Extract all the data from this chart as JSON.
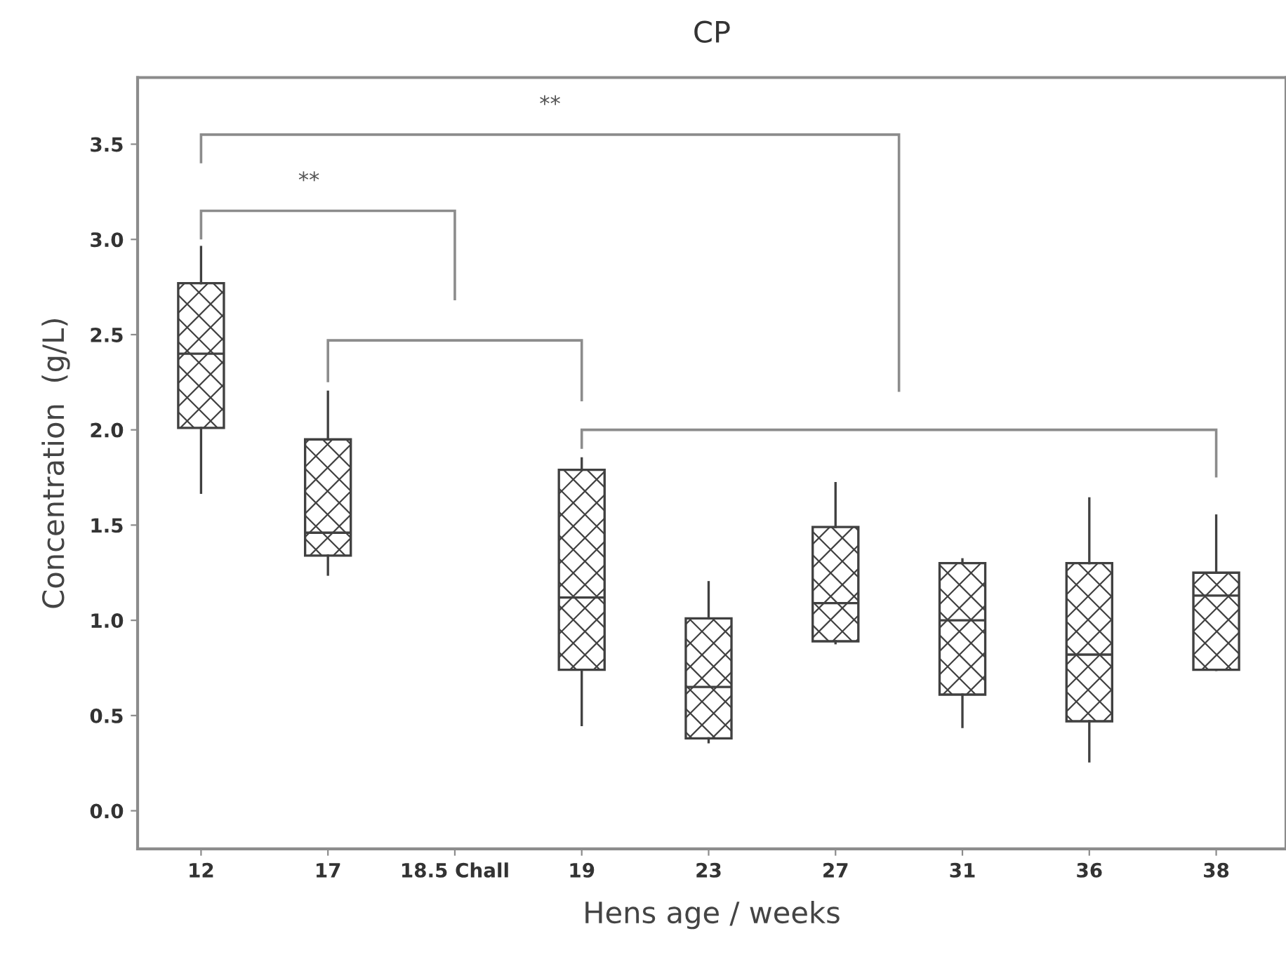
{
  "chart_data": {
    "type": "box",
    "title": "CP",
    "xlabel": "Hens age / weeks",
    "ylabel": "Concentration  (g/L)",
    "categories": [
      "12",
      "17",
      "18.5 Chall",
      "19",
      "23",
      "27",
      "31",
      "36",
      "38"
    ],
    "boxes": [
      {
        "low": 1.67,
        "q1": 2.01,
        "median": 2.4,
        "q3": 2.77,
        "high": 2.96
      },
      {
        "low": 1.24,
        "q1": 1.34,
        "median": 1.46,
        "q3": 1.95,
        "high": 2.2
      },
      null,
      {
        "low": 0.45,
        "q1": 0.74,
        "median": 1.12,
        "q3": 1.79,
        "high": 1.85
      },
      {
        "low": 0.36,
        "q1": 0.38,
        "median": 0.65,
        "q3": 1.01,
        "high": 1.2
      },
      {
        "low": 0.88,
        "q1": 0.89,
        "median": 1.09,
        "q3": 1.49,
        "high": 1.72
      },
      {
        "low": 0.44,
        "q1": 0.61,
        "median": 1.0,
        "q3": 1.3,
        "high": 1.32
      },
      {
        "low": 0.26,
        "q1": 0.47,
        "median": 0.82,
        "q3": 1.3,
        "high": 1.64
      },
      {
        "low": 0.74,
        "q1": 0.74,
        "median": 1.13,
        "q3": 1.25,
        "high": 1.55
      }
    ],
    "color": "#404040",
    "ylim": [
      -0.2,
      3.85
    ],
    "yticks": [
      {
        "value": 0,
        "label": "0.0"
      },
      {
        "value": 0.5,
        "label": "0.5"
      },
      {
        "value": 1,
        "label": "1.0"
      },
      {
        "value": 1.5,
        "label": "1.5"
      },
      {
        "value": 2,
        "label": "2.0"
      },
      {
        "value": 2.5,
        "label": "2.5"
      },
      {
        "value": 3,
        "label": "3.0"
      },
      {
        "value": 3.5,
        "label": "3.5"
      }
    ],
    "grid": false,
    "legend": false,
    "annotations": [
      "**",
      "**"
    ]
  }
}
